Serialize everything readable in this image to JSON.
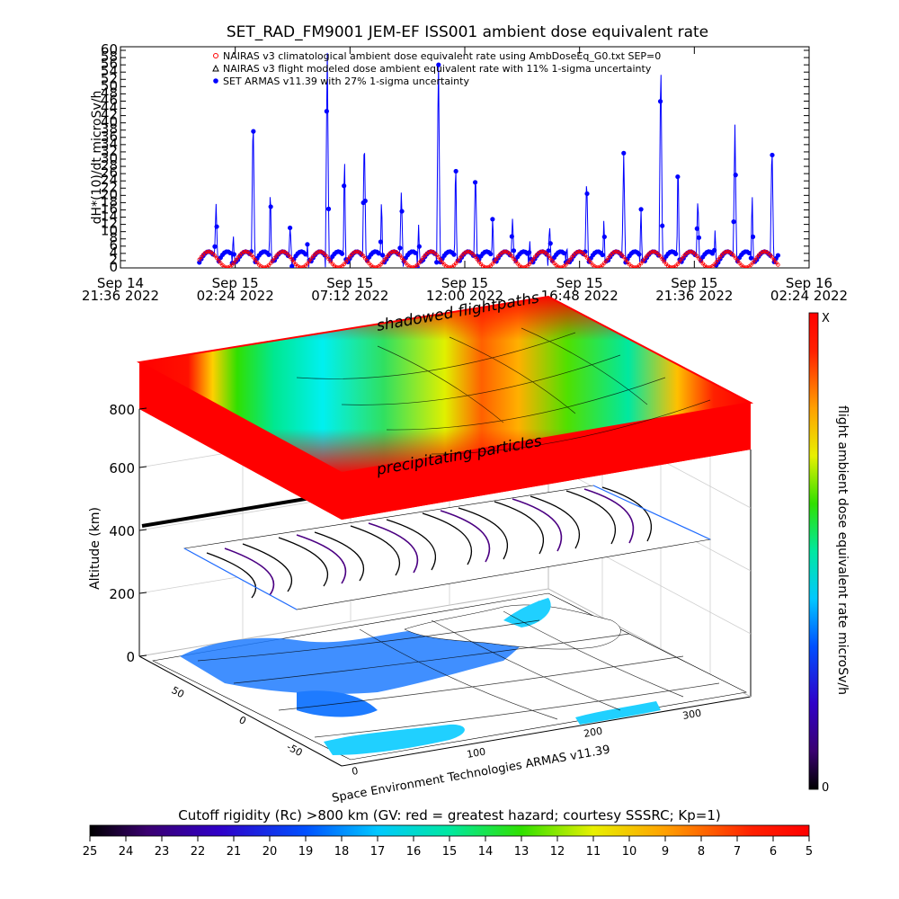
{
  "title": "SET_RAD_FM9001  JEM-EF ISS001 ambient dose equivalent rate",
  "colors": {
    "series_climatological": "#ff0000",
    "series_modeled": "#000000",
    "series_armas": "#0000ff",
    "dose_high": "#ff0000",
    "dose_low": "#000000"
  },
  "chart_data": [
    {
      "type": "line",
      "title": "SET_RAD_FM9001  JEM-EF ISS001 ambient dose equivalent rate",
      "ylabel": "dH*(10)/dt microSv/h",
      "ylim": [
        0,
        60
      ],
      "yticks": [
        "0",
        "2",
        "4",
        "6",
        "8",
        "10",
        "12",
        "14",
        "16",
        "18",
        "20",
        "22",
        "24",
        "26",
        "28",
        "30",
        "32",
        "34",
        "36",
        "38",
        "40",
        "42",
        "44",
        "46",
        "48",
        "50",
        "52",
        "54",
        "56",
        "58",
        "60"
      ],
      "xticks": [
        {
          "top": "Sep 14",
          "bottom": "21:36 2022"
        },
        {
          "top": "Sep 15",
          "bottom": "02:24 2022"
        },
        {
          "top": "Sep 15",
          "bottom": "07:12 2022"
        },
        {
          "top": "Sep 15",
          "bottom": "12:00 2022"
        },
        {
          "top": "Sep 15",
          "bottom": "16:48 2022"
        },
        {
          "top": "Sep 15",
          "bottom": "21:36 2022"
        },
        {
          "top": "Sep 16",
          "bottom": "02:24 2022"
        }
      ],
      "x_hours_from_first_tick": [
        0,
        4.8,
        9.6,
        14.4,
        19.2,
        24.0,
        28.8
      ],
      "series": [
        {
          "name": "NAIRAS v3 climatological ambient dose equivalent rate using AmbDoseEq_G0.txt SEP=0",
          "marker": "circle",
          "color": "#ff0000",
          "period_h": 1.55,
          "baseline": 2.3,
          "amplitude": 2.2
        },
        {
          "name": "NAIRAS v3 flight modeled dose ambient equivalent rate with 11% 1-sigma uncertainty",
          "marker": "triangle",
          "color": "#000000",
          "values_note": ""
        },
        {
          "name": "SET ARMAS v11.39 with 27% 1-sigma uncertainty",
          "marker": "filled-circle",
          "color": "#0000ff",
          "period_h": 1.55,
          "baseline": 1.5,
          "spikes": [
            18,
            44,
            12,
            62,
            38,
            22,
            60,
            28,
            14,
            12,
            26,
            32,
            60,
            20,
            40,
            36,
            16,
            14,
            18,
            22,
            12,
            16,
            45,
            30,
            22,
            14,
            60,
            28,
            40,
            18,
            22,
            20,
            34,
            60,
            20,
            16,
            30,
            22,
            46,
            20,
            16,
            18
          ]
        }
      ],
      "x_range_hours": [
        3.3,
        27.5
      ],
      "legend": "top"
    },
    {
      "type": "heatmap",
      "ylabel": "Altitude (km)",
      "zticks": [
        "0",
        "200",
        "400",
        "600",
        "800"
      ],
      "lon_ticks": [
        "0",
        "100",
        "200",
        "300"
      ],
      "lat_ticks": [
        "50",
        "0",
        "-50"
      ],
      "colorbar": {
        "label": "flight ambient dose equivalent rate microSv/h",
        "top": "X",
        "bottom": "0"
      },
      "annotations": [
        "shadowed flightpaths",
        "precipitating particles"
      ],
      "credit": "Space Environment Technologies ARMAS v11.39"
    },
    {
      "type": "heatmap",
      "title": "Cutoff rigidity (Rc) >800 km (GV: red = greatest hazard; courtesy SSSRC; Kp=1)",
      "colorbar_ticks": [
        "25",
        "24",
        "23",
        "22",
        "21",
        "20",
        "19",
        "18",
        "17",
        "16",
        "15",
        "14",
        "13",
        "12",
        "11",
        "10",
        "9",
        "8",
        "7",
        "6",
        "5"
      ]
    }
  ]
}
